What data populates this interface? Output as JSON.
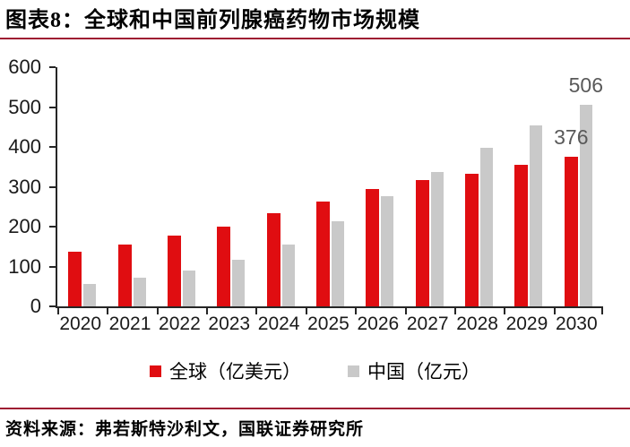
{
  "header": {
    "title": "图表8：全球和中国前列腺癌药物市场规模"
  },
  "colors": {
    "accent_rule": "#9e1b32",
    "global_bar": "#e00d11",
    "china_bar": "#c9c9c9",
    "axis": "#262626",
    "annotation_text": "#595959"
  },
  "chart_data": {
    "type": "bar",
    "title": "图表8：全球和中国前列腺癌药物市场规模",
    "categories": [
      "2020",
      "2021",
      "2022",
      "2023",
      "2024",
      "2025",
      "2026",
      "2027",
      "2028",
      "2029",
      "2030"
    ],
    "series": [
      {
        "name": "全球（亿美元）",
        "color": "#e00d11",
        "values": [
          138,
          156,
          177,
          201,
          233,
          264,
          294,
          316,
          333,
          355,
          376
        ]
      },
      {
        "name": "中国（亿元）",
        "color": "#c9c9c9",
        "values": [
          56,
          71,
          89,
          117,
          156,
          213,
          277,
          337,
          397,
          455,
          506
        ]
      }
    ],
    "xlabel": "",
    "ylabel": "",
    "ylim": [
      0,
      600
    ],
    "yticks": [
      0,
      100,
      200,
      300,
      400,
      500,
      600
    ],
    "grid": false,
    "legend_position": "bottom",
    "annotations": [
      {
        "text": "376",
        "series_index": 0,
        "category": "2030",
        "color": "#595959"
      },
      {
        "text": "506",
        "series_index": 1,
        "category": "2030",
        "color": "#595959"
      }
    ]
  },
  "footer": {
    "source_label": "资料来源：弗若斯特沙利文，国联证券研究所"
  }
}
